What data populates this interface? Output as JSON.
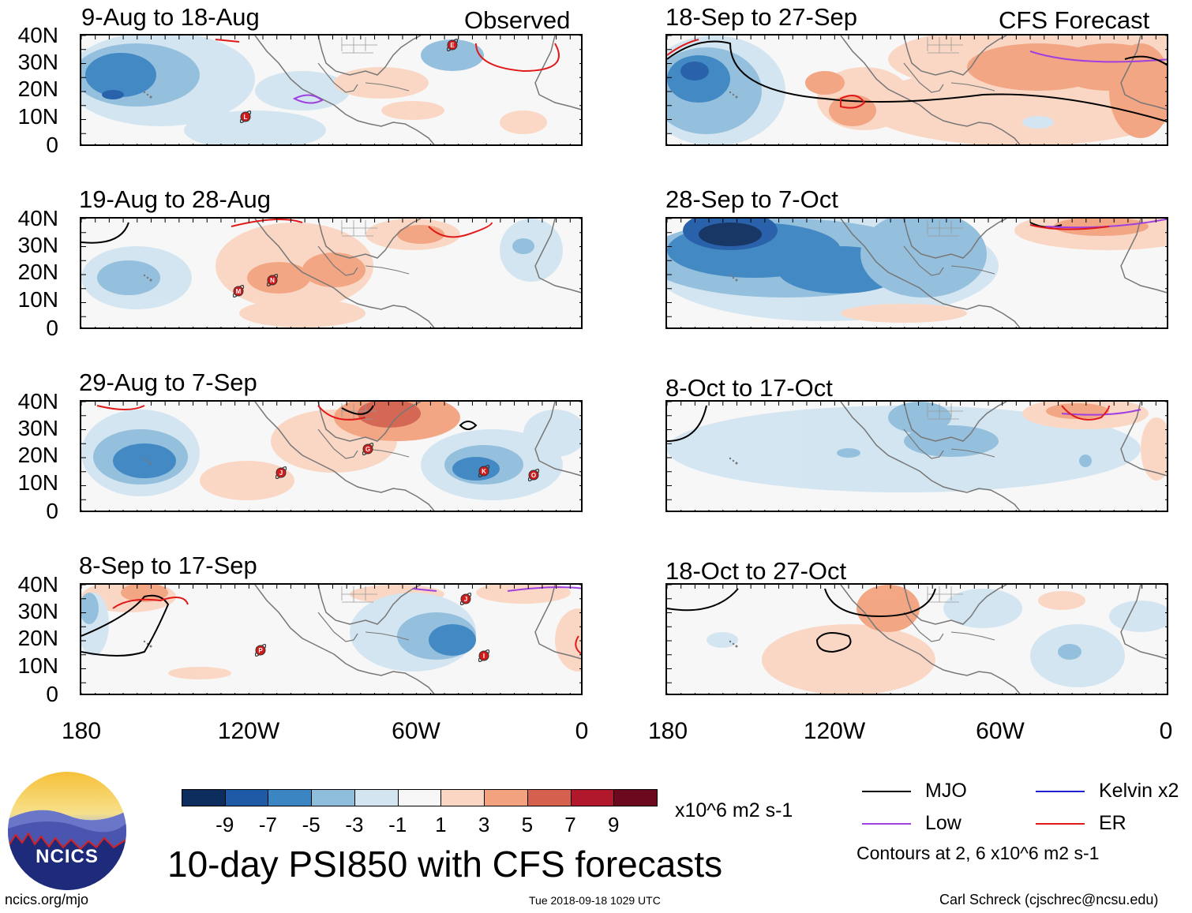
{
  "columns": {
    "left_tag": "Observed",
    "right_tag": "CFS Forecast"
  },
  "panels": [
    {
      "title": "9-Aug to 18-Aug",
      "column": "left",
      "row": 0,
      "storms": [
        "E",
        "L"
      ]
    },
    {
      "title": "19-Aug to 28-Aug",
      "column": "left",
      "row": 1,
      "storms": [
        "M",
        "N"
      ]
    },
    {
      "title": "29-Aug to 7-Sep",
      "column": "left",
      "row": 2,
      "storms": [
        "G",
        "J",
        "K",
        "O"
      ]
    },
    {
      "title": "8-Sep to 17-Sep",
      "column": "left",
      "row": 3,
      "storms": [
        "J",
        "I",
        "P"
      ]
    },
    {
      "title": "18-Sep to 27-Sep",
      "column": "right",
      "row": 0,
      "storms": []
    },
    {
      "title": "28-Sep to 7-Oct",
      "column": "right",
      "row": 1,
      "storms": []
    },
    {
      "title": "8-Oct to 17-Oct",
      "column": "right",
      "row": 2,
      "storms": []
    },
    {
      "title": "18-Oct to 27-Oct",
      "column": "right",
      "row": 3,
      "storms": []
    }
  ],
  "lat_labels": [
    "40N",
    "30N",
    "20N",
    "10N",
    "0"
  ],
  "lon_labels": [
    "180",
    "120W",
    "60W",
    "0"
  ],
  "colorbar": {
    "colors": [
      "#0d2d5e",
      "#1f5aa6",
      "#3a85c2",
      "#8fbddc",
      "#d2e5f1",
      "#f7f7f7",
      "#fbd6c2",
      "#f2a27e",
      "#d4604d",
      "#b2182b",
      "#6b0a1f"
    ],
    "labels": [
      "-9",
      "-7",
      "-5",
      "-3",
      "-1",
      "1",
      "3",
      "5",
      "7",
      "9"
    ],
    "units": "x10^6 m2 s-1"
  },
  "title": "10-day PSI850 with CFS forecasts",
  "legend": {
    "items": [
      {
        "label": "MJO",
        "color": "#000000"
      },
      {
        "label": "Kelvin x2",
        "color": "#1f1fd6"
      },
      {
        "label": "Low",
        "color": "#a040e0"
      },
      {
        "label": "ER",
        "color": "#e01a1a"
      }
    ],
    "note": "Contours at 2, 6 x10^6 m2 s-1"
  },
  "logo": {
    "text": "NCICS"
  },
  "footer": {
    "left": "ncics.org/mjo",
    "center": "Tue 2018-09-18 1029 UTC",
    "right": "Carl Schreck (cjschrec@ncsu.edu)"
  }
}
